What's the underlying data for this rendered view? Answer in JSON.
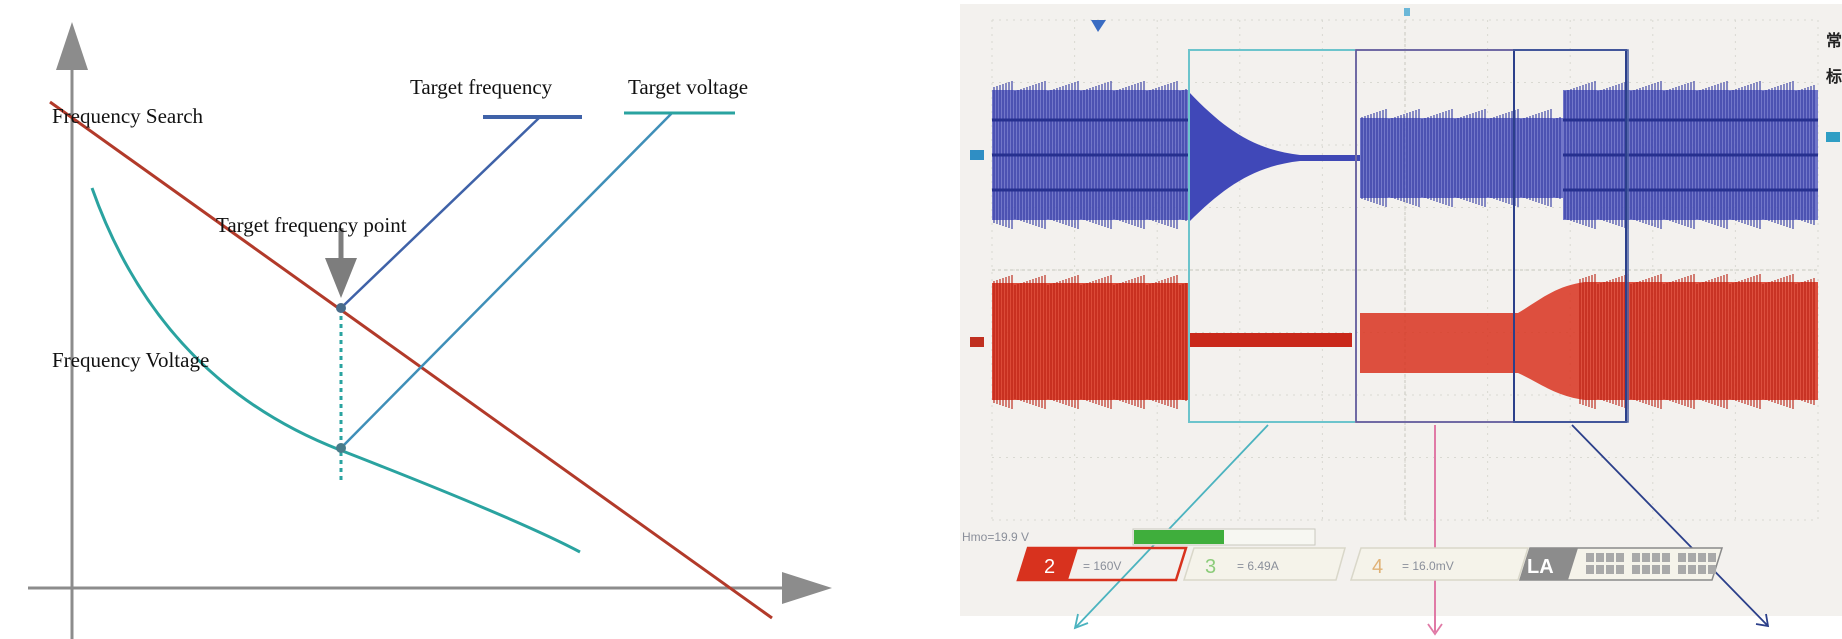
{
  "left_diagram": {
    "labels": {
      "frequency_search": "Frequency Search",
      "target_frequency": "Target frequency",
      "target_voltage": "Target voltage",
      "target_frequency_point": "Target frequency point",
      "frequency_voltage": "Frequency Voltage"
    },
    "colors": {
      "search_line": "#b23a2a",
      "frequency_line": "#3f62a8",
      "voltage_line": "#2aa3a0",
      "axis": "#8c8c8c",
      "arrow": "#7d7d7d"
    }
  },
  "oscilloscope": {
    "readout": "Hmo=19.9 V",
    "ch2_label": "2",
    "ch2_value": "= 160V",
    "ch3_label": "3",
    "ch3_value": "= 6.49A",
    "ch4_label": "4",
    "ch4_value": "= 16.0mV",
    "la_label": "LA",
    "side_char_1": "常",
    "side_char_2": "标",
    "colors": {
      "blue_trace": "#3f48b5",
      "red_trace": "#d8321e",
      "teal_box": "#6cc4cc",
      "pink_box": "#e58ab0",
      "navy_box": "#2b3f8a",
      "screen_bg": "#f3f1ee"
    }
  }
}
